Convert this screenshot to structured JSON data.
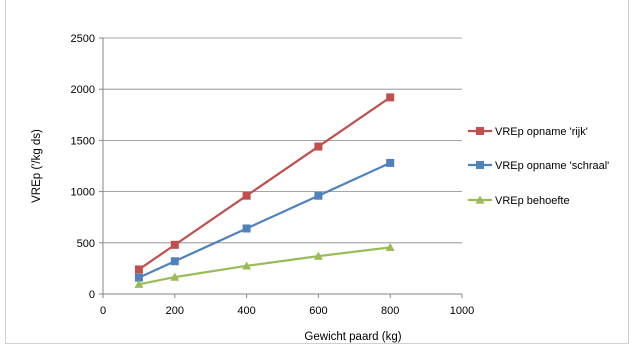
{
  "chart_data": {
    "type": "line",
    "title": "",
    "xlabel": "Gewicht paard (kg)",
    "ylabel": "VREp ('/kg ds)",
    "xlim": [
      0,
      1000
    ],
    "ylim": [
      0,
      2500
    ],
    "xticks": [
      "0",
      "200",
      "400",
      "600",
      "800",
      "1000"
    ],
    "yticks": [
      "0",
      "500",
      "1000",
      "1500",
      "2000",
      "2500"
    ],
    "grid": "horizontal",
    "legend_position": "right",
    "series": [
      {
        "name": "VREp opname 'rijk'",
        "color": "#c0504d",
        "marker": "square",
        "x": [
          100,
          200,
          400,
          600,
          800
        ],
        "y": [
          240,
          480,
          960,
          1440,
          1920
        ]
      },
      {
        "name": "VREp opname 'schraal'",
        "color": "#4f81bd",
        "marker": "square",
        "x": [
          100,
          200,
          400,
          600,
          800
        ],
        "y": [
          160,
          320,
          640,
          960,
          1280
        ]
      },
      {
        "name": "VREp behoefte",
        "color": "#9bbb59",
        "marker": "triangle",
        "x": [
          100,
          200,
          400,
          600,
          800
        ],
        "y": [
          95,
          165,
          275,
          370,
          455
        ]
      }
    ]
  }
}
